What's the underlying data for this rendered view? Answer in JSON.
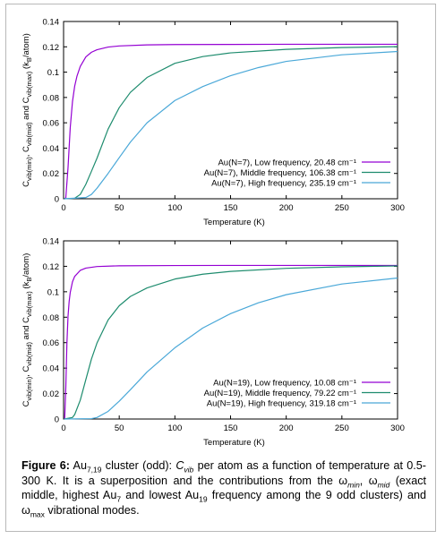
{
  "colors": {
    "low": "#9400d3",
    "mid": "#1e8c6e",
    "high": "#4aa8d8"
  },
  "chart_data": [
    {
      "type": "line",
      "ylabel": "C_vib(min), C_vib(mid) and C_vib(max) (k_B/atom)",
      "xlabel": "Temperature (K)",
      "xlim": [
        0,
        300
      ],
      "ylim": [
        0,
        0.14
      ],
      "xticks": [
        "0",
        "50",
        "100",
        "150",
        "200",
        "250",
        "300"
      ],
      "yticks": [
        "0",
        "0.02",
        "0.04",
        "0.06",
        "0.08",
        "0.1",
        "0.12",
        "0.14"
      ],
      "legend_position": "bottom-right",
      "series": [
        {
          "name": "Au(N=7), Low frequency, 20.48 cm⁻¹",
          "color_key": "low",
          "frequency": 20.48,
          "x": [
            0.5,
            2,
            4,
            6,
            8,
            10,
            12,
            15,
            20,
            25,
            30,
            40,
            50,
            75,
            100,
            150,
            200,
            250,
            300
          ],
          "y": [
            0,
            0.0007,
            0.0245,
            0.0563,
            0.0767,
            0.089,
            0.0967,
            0.1045,
            0.112,
            0.1157,
            0.1177,
            0.1198,
            0.1207,
            0.1215,
            0.1218,
            0.1219,
            0.122,
            0.122,
            0.122
          ]
        },
        {
          "name": "Au(N=7), Middle frequency, 106.38 cm⁻¹",
          "color_key": "mid",
          "frequency": 106.38,
          "x": [
            0.5,
            10,
            15,
            20,
            25,
            30,
            40,
            50,
            60,
            75,
            100,
            125,
            150,
            200,
            250,
            300
          ],
          "y": [
            0,
            0.0004,
            0.0034,
            0.0114,
            0.0216,
            0.032,
            0.055,
            0.072,
            0.084,
            0.0958,
            0.107,
            0.1123,
            0.1152,
            0.118,
            0.1194,
            0.1201
          ]
        },
        {
          "name": "Au(N=7), High frequency, 235.19 cm⁻¹",
          "color_key": "high",
          "frequency": 235.19,
          "x": [
            0.5,
            20,
            25,
            30,
            40,
            50,
            60,
            75,
            100,
            125,
            150,
            175,
            200,
            250,
            300
          ],
          "y": [
            0,
            0.001,
            0.0034,
            0.0083,
            0.02,
            0.0325,
            0.0447,
            0.06,
            0.0776,
            0.0886,
            0.0972,
            0.1036,
            0.1085,
            0.1137,
            0.1163
          ]
        }
      ]
    },
    {
      "type": "line",
      "ylabel": "C_vib(min), C_vib(mid) and C_vib(max) (k_B/atom)",
      "xlabel": "Temperature (K)",
      "xlim": [
        0,
        300
      ],
      "ylim": [
        0,
        0.14
      ],
      "xticks": [
        "0",
        "50",
        "100",
        "150",
        "200",
        "250",
        "300"
      ],
      "yticks": [
        "0",
        "0.02",
        "0.04",
        "0.06",
        "0.08",
        "0.1",
        "0.12",
        "0.14"
      ],
      "legend_position": "bottom-right",
      "series": [
        {
          "name": "Au(N=19), Low frequency, 10.08 cm⁻¹",
          "color_key": "low",
          "frequency": 10.08,
          "x": [
            0.5,
            1,
            2,
            3,
            4,
            5,
            6,
            8,
            10,
            15,
            20,
            30,
            50,
            100,
            150,
            200,
            250,
            300
          ],
          "y": [
            0,
            0.0002,
            0.0247,
            0.0595,
            0.0808,
            0.0923,
            0.0995,
            0.1078,
            0.1121,
            0.1168,
            0.1186,
            0.1198,
            0.1204,
            0.1206,
            0.1207,
            0.1207,
            0.1207,
            0.1207
          ]
        },
        {
          "name": "Au(N=19), Middle frequency, 79.22 cm⁻¹",
          "color_key": "mid",
          "frequency": 79.22,
          "x": [
            0.5,
            8,
            10,
            15,
            20,
            25,
            30,
            40,
            50,
            60,
            75,
            100,
            125,
            150,
            200,
            250,
            300
          ],
          "y": [
            0,
            0.0012,
            0.0035,
            0.0148,
            0.031,
            0.047,
            0.0597,
            0.0778,
            0.089,
            0.0963,
            0.103,
            0.11,
            0.1138,
            0.116,
            0.1184,
            0.1196,
            0.1203
          ]
        },
        {
          "name": "Au(N=19), High frequency, 319.18 cm⁻¹",
          "color_key": "high",
          "frequency": 319.18,
          "x": [
            0.5,
            25,
            30,
            40,
            50,
            60,
            75,
            100,
            125,
            150,
            175,
            200,
            250,
            300
          ],
          "y": [
            0,
            0.0003,
            0.0012,
            0.006,
            0.014,
            0.023,
            0.037,
            0.056,
            0.0715,
            0.0828,
            0.0913,
            0.0977,
            0.1061,
            0.1108
          ]
        }
      ]
    }
  ],
  "caption": {
    "figure_label": "Figure 6:",
    "parts": [
      {
        "t": " Au",
        "s": ""
      },
      {
        "t": "7,19",
        "s": "sub"
      },
      {
        "t": " cluster (odd): ",
        "s": ""
      },
      {
        "t": "C",
        "s": "i"
      },
      {
        "t": "vib",
        "s": "isub"
      },
      {
        "t": " per atom as a function of temperature at 0.5-300 K. It is a superposition and the contributions from the ω",
        "s": ""
      },
      {
        "t": "min",
        "s": "isub"
      },
      {
        "t": ", ω",
        "s": ""
      },
      {
        "t": "mid",
        "s": "isub"
      },
      {
        "t": " (exact middle, highest Au",
        "s": ""
      },
      {
        "t": "7",
        "s": "sub"
      },
      {
        "t": " and lowest Au",
        "s": ""
      },
      {
        "t": "19",
        "s": "sub"
      },
      {
        "t": " frequency among the 9 odd clusters) and ω",
        "s": ""
      },
      {
        "t": "max",
        "s": "sub"
      },
      {
        "t": " vibrational modes.",
        "s": ""
      }
    ]
  }
}
